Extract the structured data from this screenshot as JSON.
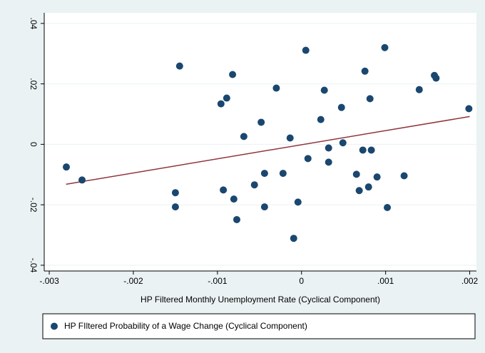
{
  "chart_data": {
    "type": "scatter",
    "xlabel": "HP Filtered Monthly Unemployment Rate (Cyclical Component)",
    "xlim": [
      -0.00306,
      0.00208
    ],
    "xticks": [
      {
        "value": -0.003,
        "label": "-.003"
      },
      {
        "value": -0.002,
        "label": "-.002"
      },
      {
        "value": -0.001,
        "label": "-.001"
      },
      0,
      {
        "value": 0.001,
        "label": ".001"
      },
      {
        "value": 0.002,
        "label": ".002"
      }
    ],
    "ylim": [
      -0.0419,
      0.0435
    ],
    "yticks": [
      {
        "value": -0.04,
        "label": "-.04"
      },
      {
        "value": -0.02,
        "label": "-.02"
      },
      0,
      {
        "value": 0.02,
        "label": ".02"
      },
      {
        "value": 0.04,
        "label": ".04"
      }
    ],
    "grid": true,
    "series": [
      {
        "name": "HP FIltered Probability of a Wage Change (Cyclical Component)",
        "color": "#1a476f",
        "x": [
          -0.002797,
          -0.00261,
          -0.0015,
          -0.0015,
          -0.00145,
          -0.000958,
          -0.00089,
          -0.00093,
          -0.00082,
          -0.000805,
          -0.00077,
          -0.000686,
          -0.00056,
          -0.00048,
          -0.00044,
          -0.00044,
          -0.0003,
          -0.00022,
          -0.000136,
          -9.32e-05,
          -4.24e-05,
          5.08e-05,
          7.63e-05,
          0.000229,
          0.000271,
          0.000322,
          0.000322,
          0.000475,
          0.000492,
          0.000653,
          0.000686,
          0.000729,
          0.000754,
          0.000797,
          0.000814,
          0.00083,
          0.000898,
          0.00099,
          0.00102,
          0.00122,
          0.0014,
          0.00158,
          0.0016,
          0.00199
        ],
        "values": [
          -0.0075,
          -0.0118,
          -0.016,
          -0.0207,
          0.0259,
          0.0134,
          0.0153,
          -0.0151,
          0.0231,
          -0.0181,
          -0.0249,
          0.0026,
          -0.0134,
          0.0073,
          -0.0096,
          -0.0207,
          0.0186,
          -0.0096,
          0.0021,
          -0.0311,
          -0.0191,
          0.0311,
          -0.0047,
          0.0082,
          0.0179,
          -0.0012,
          -0.0059,
          0.0122,
          0.0005,
          -0.0099,
          -0.0153,
          -0.0019,
          0.0242,
          -0.0141,
          0.0151,
          -0.0019,
          -0.0108,
          0.032,
          -0.0209,
          -0.0104,
          0.0181,
          0.0228,
          0.0219,
          0.0118
        ]
      }
    ],
    "fit_line": {
      "color": "#90353b",
      "x": [
        -0.0028,
        0.002
      ],
      "values": [
        -0.0132,
        0.0092
      ]
    },
    "legend": "bottom"
  }
}
